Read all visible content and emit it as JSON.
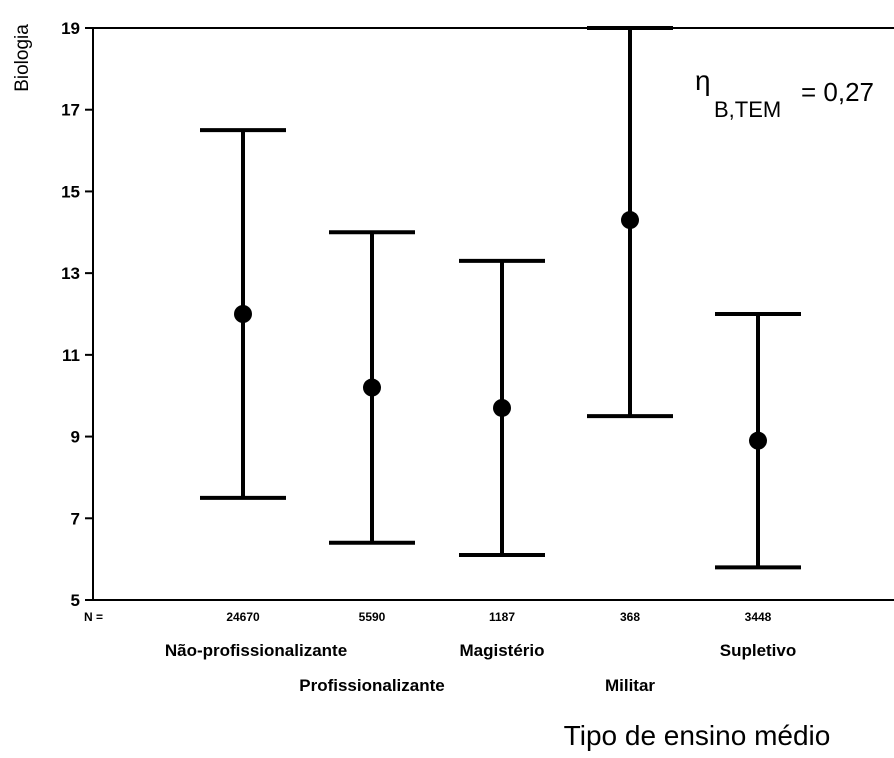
{
  "chart_data": {
    "type": "errorbar",
    "ylabel": "Biologia",
    "xlabel": "Tipo de ensino médio",
    "ylim": [
      5,
      19
    ],
    "yticks": [
      5,
      7,
      9,
      11,
      13,
      15,
      17,
      19
    ],
    "n_prefix": "N =",
    "categories": [
      "Não-profissionalizante",
      "Profissionalizante",
      "Magistério",
      "Militar",
      "Supletivo"
    ],
    "n_values": [
      "24670",
      "5590",
      "1187",
      "368",
      "3448"
    ],
    "means": [
      12.0,
      10.2,
      9.7,
      14.3,
      8.9
    ],
    "lower": [
      7.5,
      6.4,
      6.1,
      9.5,
      5.8
    ],
    "upper": [
      16.5,
      14.0,
      13.3,
      19.0,
      12.0
    ],
    "annotation": {
      "symbol": "η",
      "subscript": "B,TEM",
      "value": "= 0,27"
    },
    "grid": false,
    "legend": "none"
  }
}
